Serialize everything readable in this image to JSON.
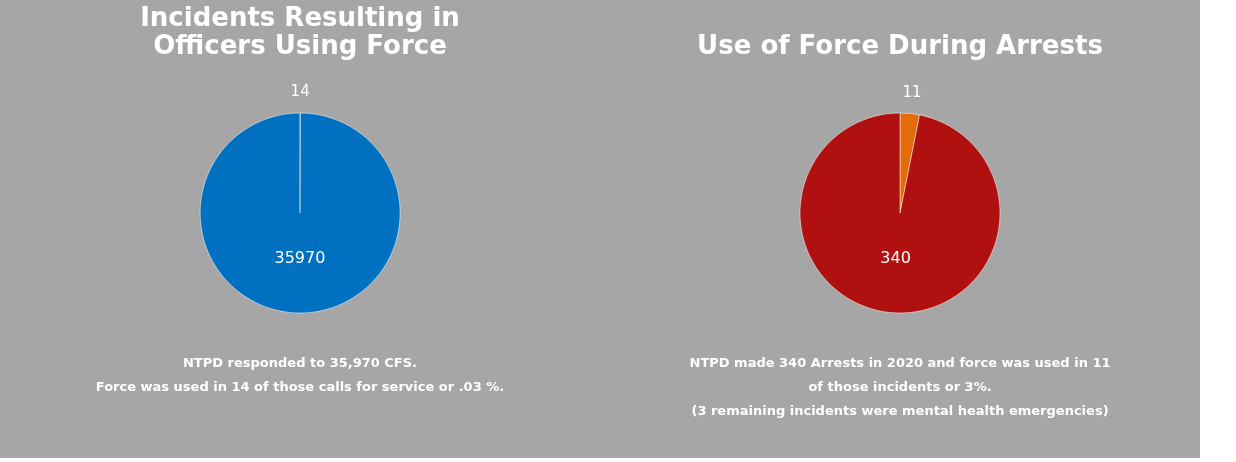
{
  "chart_data": [
    {
      "type": "pie",
      "title": [
        "Incidents Resulting in",
        "Officers Using Force"
      ],
      "categories": [
        null,
        null
      ],
      "values": [
        14,
        35970
      ],
      "colors": [
        "#0070c0",
        "#0070c0"
      ],
      "data_labels": true,
      "annotations": [
        "NTPD responded to 35,970 CFS.",
        "Force was used in 14 of those calls for service or .03 %."
      ]
    },
    {
      "type": "pie",
      "title": "Use of Force During Arrests",
      "categories": [
        null,
        null
      ],
      "values": [
        11,
        340
      ],
      "colors": [
        "#e36c09",
        "#b01010"
      ],
      "data_labels": true,
      "annotations": [
        "NTPD made 340 Arrests in 2020 and force was used in 11",
        "of those incidents or 3%.",
        "(3 remaining incidents were mental health emergencies)"
      ]
    }
  ]
}
